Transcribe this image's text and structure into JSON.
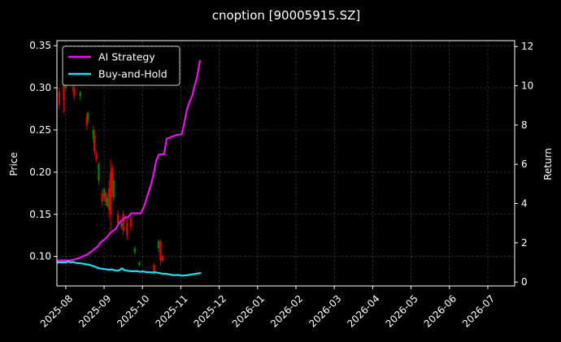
{
  "chart_data": {
    "type": "line",
    "title": "cnoption [90005915.SZ]",
    "ylabel_left": "Price",
    "ylabel_right": "Return",
    "grid": true,
    "legend_position": "top-left",
    "x_ticks": [
      "2025-08",
      "2025-09",
      "2025-10",
      "2025-11",
      "2025-12",
      "2026-01",
      "2026-02",
      "2026-03",
      "2026-04",
      "2026-05",
      "2026-06",
      "2026-07"
    ],
    "y_left_ticks": [
      "0.10",
      "0.15",
      "0.20",
      "0.25",
      "0.30",
      "0.35"
    ],
    "y_right_ticks": [
      "0",
      "2",
      "4",
      "6",
      "8",
      "10",
      "12"
    ],
    "x_range_months": [
      -0.23,
      11.7
    ],
    "y_left_range": [
      0.065,
      0.356
    ],
    "y_right_range": [
      -0.2,
      12.3
    ],
    "colors": {
      "ai": "#ee11ee",
      "bh": "#22ddee",
      "up": "#008000",
      "down": "#dd0000",
      "grid": "#444444"
    },
    "series": [
      {
        "name": "AI Strategy",
        "axis": "right",
        "x": [
          -0.23,
          0.03,
          0.1,
          0.16,
          0.23,
          0.3,
          0.36,
          0.43,
          0.5,
          0.56,
          0.63,
          0.7,
          0.76,
          0.83,
          0.9,
          0.96,
          1.03,
          1.1,
          1.16,
          1.23,
          1.3,
          1.36,
          1.43,
          1.5,
          1.56,
          1.63,
          1.7,
          1.76,
          1.83,
          1.9,
          1.96,
          2.03,
          2.1,
          2.16,
          2.23,
          2.3,
          2.36,
          2.43,
          2.5,
          2.56,
          2.63,
          2.7,
          2.76,
          2.83,
          2.9,
          2.96,
          3.03,
          3.1,
          3.16,
          3.23,
          3.3,
          3.36,
          3.43,
          3.5
        ],
        "values": [
          1.1,
          1.1,
          1.1,
          1.12,
          1.15,
          1.2,
          1.22,
          1.3,
          1.35,
          1.4,
          1.5,
          1.6,
          1.7,
          1.8,
          2.0,
          2.1,
          2.2,
          2.35,
          2.5,
          2.6,
          2.7,
          2.9,
          3.1,
          3.2,
          3.3,
          3.3,
          3.5,
          3.5,
          3.5,
          3.5,
          3.5,
          3.8,
          4.2,
          4.6,
          5.0,
          5.6,
          6.2,
          6.5,
          6.5,
          6.5,
          7.3,
          7.35,
          7.4,
          7.45,
          7.5,
          7.5,
          7.55,
          8.2,
          8.8,
          9.2,
          9.5,
          10.0,
          10.5,
          11.3
        ]
      },
      {
        "name": "Buy-and-Hold",
        "axis": "right",
        "x": [
          -0.23,
          0,
          0.07,
          0.13,
          0.2,
          0.26,
          0.33,
          0.4,
          0.46,
          0.53,
          0.6,
          0.66,
          0.73,
          0.8,
          0.86,
          0.93,
          1.0,
          1.06,
          1.13,
          1.2,
          1.26,
          1.33,
          1.4,
          1.46,
          1.53,
          1.6,
          1.66,
          1.73,
          1.8,
          1.86,
          1.93,
          2.0,
          2.06,
          2.13,
          2.2,
          2.26,
          2.33,
          2.4,
          2.46,
          2.53,
          2.6,
          2.66,
          2.73,
          2.8,
          2.86,
          2.93,
          3.0,
          3.06,
          3.13,
          3.2,
          3.26,
          3.33,
          3.4,
          3.46,
          3.53
        ],
        "values": [
          1.0,
          1.0,
          1.05,
          1.0,
          1.02,
          0.98,
          0.96,
          0.95,
          0.93,
          0.9,
          0.88,
          0.85,
          0.8,
          0.75,
          0.7,
          0.68,
          0.66,
          0.65,
          0.62,
          0.65,
          0.6,
          0.58,
          0.6,
          0.7,
          0.6,
          0.58,
          0.56,
          0.55,
          0.55,
          0.56,
          0.52,
          0.54,
          0.52,
          0.5,
          0.5,
          0.48,
          0.5,
          0.47,
          0.45,
          0.42,
          0.42,
          0.4,
          0.38,
          0.35,
          0.35,
          0.36,
          0.33,
          0.33,
          0.34,
          0.36,
          0.38,
          0.4,
          0.42,
          0.44,
          0.46
        ]
      }
    ],
    "candles": [
      {
        "x": -0.17,
        "o": 0.295,
        "c": 0.28,
        "h": 0.3,
        "l": 0.275
      },
      {
        "x": -0.05,
        "o": 0.305,
        "c": 0.285,
        "h": 0.31,
        "l": 0.27
      },
      {
        "x": 0.0,
        "o": 0.3,
        "c": 0.31,
        "h": 0.315,
        "l": 0.295
      },
      {
        "x": 0.18,
        "o": 0.325,
        "c": 0.305,
        "h": 0.33,
        "l": 0.295
      },
      {
        "x": 0.22,
        "o": 0.3,
        "c": 0.29,
        "h": 0.305,
        "l": 0.285
      },
      {
        "x": 0.38,
        "o": 0.29,
        "c": 0.295,
        "h": 0.297,
        "l": 0.285
      },
      {
        "x": 0.55,
        "o": 0.265,
        "c": 0.255,
        "h": 0.27,
        "l": 0.25
      },
      {
        "x": 0.58,
        "o": 0.262,
        "c": 0.27,
        "h": 0.272,
        "l": 0.258
      },
      {
        "x": 0.72,
        "o": 0.24,
        "c": 0.25,
        "h": 0.255,
        "l": 0.235
      },
      {
        "x": 0.75,
        "o": 0.245,
        "c": 0.225,
        "h": 0.25,
        "l": 0.22
      },
      {
        "x": 0.8,
        "o": 0.22,
        "c": 0.215,
        "h": 0.225,
        "l": 0.212
      },
      {
        "x": 0.86,
        "o": 0.19,
        "c": 0.21,
        "h": 0.212,
        "l": 0.185
      },
      {
        "x": 0.95,
        "o": 0.175,
        "c": 0.165,
        "h": 0.18,
        "l": 0.16
      },
      {
        "x": 1.0,
        "o": 0.17,
        "c": 0.18,
        "h": 0.182,
        "l": 0.165
      },
      {
        "x": 1.04,
        "o": 0.175,
        "c": 0.165,
        "h": 0.178,
        "l": 0.16
      },
      {
        "x": 1.08,
        "o": 0.16,
        "c": 0.17,
        "h": 0.175,
        "l": 0.158
      },
      {
        "x": 1.13,
        "o": 0.18,
        "c": 0.155,
        "h": 0.19,
        "l": 0.145
      },
      {
        "x": 1.17,
        "o": 0.2,
        "c": 0.15,
        "h": 0.215,
        "l": 0.13
      },
      {
        "x": 1.21,
        "o": 0.205,
        "c": 0.175,
        "h": 0.21,
        "l": 0.17
      },
      {
        "x": 1.25,
        "o": 0.17,
        "c": 0.19,
        "h": 0.195,
        "l": 0.165
      },
      {
        "x": 1.36,
        "o": 0.15,
        "c": 0.14,
        "h": 0.155,
        "l": 0.135
      },
      {
        "x": 1.45,
        "o": 0.135,
        "c": 0.14,
        "h": 0.142,
        "l": 0.132
      },
      {
        "x": 1.5,
        "o": 0.15,
        "c": 0.13,
        "h": 0.155,
        "l": 0.125
      },
      {
        "x": 1.6,
        "o": 0.14,
        "c": 0.125,
        "h": 0.145,
        "l": 0.12
      },
      {
        "x": 1.7,
        "o": 0.145,
        "c": 0.135,
        "h": 0.148,
        "l": 0.13
      },
      {
        "x": 1.8,
        "o": 0.105,
        "c": 0.11,
        "h": 0.112,
        "l": 0.102
      },
      {
        "x": 1.92,
        "o": 0.09,
        "c": 0.093,
        "h": 0.094,
        "l": 0.088
      },
      {
        "x": 2.3,
        "o": 0.09,
        "c": 0.08,
        "h": 0.092,
        "l": 0.078
      },
      {
        "x": 2.42,
        "o": 0.11,
        "c": 0.118,
        "h": 0.12,
        "l": 0.105
      },
      {
        "x": 2.47,
        "o": 0.118,
        "c": 0.095,
        "h": 0.12,
        "l": 0.09
      },
      {
        "x": 2.52,
        "o": 0.1,
        "c": 0.095,
        "h": 0.102,
        "l": 0.092
      }
    ]
  }
}
